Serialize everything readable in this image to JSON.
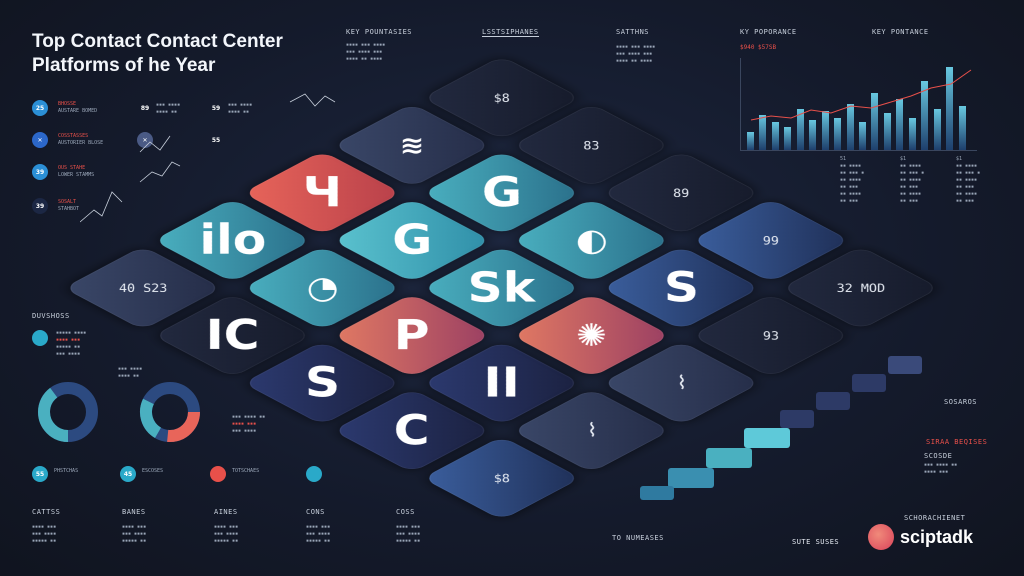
{
  "title_line1": "Top Contact Contact Center",
  "title_line2": "Platforms of he Year",
  "top_headers": {
    "h1": "KEY POUNTASIES",
    "h2": "LSSTSIPHANES",
    "h3": "SATTHNS",
    "h4": "KY POPORANCE",
    "h5": "KEY PONTANCE"
  },
  "left_rows": [
    {
      "icon": "25",
      "color": "#2b8fd6",
      "title": "BHOSSE",
      "sub": "AUSTARE BOMED"
    },
    {
      "icon": "✕",
      "color": "#2c67c9",
      "title": "COSSTASSES",
      "sub": "AUSTORIER BLOSE"
    },
    {
      "icon": "39",
      "color": "#2b8fd6",
      "title": "OUS STAHE",
      "sub": "LOWER STAMMS"
    },
    {
      "icon": "39",
      "color": "#1c2744",
      "title": "SOSALT",
      "sub": "STAHBOT"
    }
  ],
  "mid_icons": [
    {
      "icon": "89",
      "color": "#e8504a"
    },
    {
      "icon": "✕",
      "color": "#4a5a85"
    }
  ],
  "right_icons": [
    {
      "icon": "59",
      "color": "#2aa9c9"
    },
    {
      "icon": "55",
      "color": "#2b6ec9"
    }
  ],
  "tile_values": {
    "v1": "40 S23",
    "v2": "$8",
    "v3": "$8",
    "v4": "83",
    "v5": "89",
    "v6": "99",
    "v7": "93",
    "v8": "32 MOD"
  },
  "section_left": "DUVSHOSS",
  "bottom_icons": [
    {
      "icon": "55",
      "color": "#2aa9c9",
      "text": "PHSTCHAS"
    },
    {
      "icon": "45",
      "color": "#2aa9c9",
      "text": "ESCOSES"
    },
    {
      "icon": "",
      "color": "#e8504a",
      "text": "TOTSCHAES"
    },
    {
      "icon": "",
      "color": "#2aa9c9",
      "text": ""
    }
  ],
  "bottom_headers": {
    "b1": "CATTSS",
    "b2": "BANES",
    "b3": "AINES",
    "b4": "CONS",
    "b5": "COSS",
    "b6": "TO NUMEASES"
  },
  "right_bottom": {
    "label1": "SOSAROS",
    "label2": "SIRAA BEQISES",
    "label3": "SCOSDE",
    "label4": "SCHORACHIENET",
    "label5": "SUTE SUSES"
  },
  "bar_heights": [
    0.2,
    0.38,
    0.3,
    0.25,
    0.45,
    0.33,
    0.42,
    0.35,
    0.5,
    0.3,
    0.62,
    0.4,
    0.55,
    0.35,
    0.75,
    0.45,
    0.9,
    0.48
  ],
  "chart_head_left": "$940 $57SB",
  "brand_name": "sciptadk",
  "colors": {
    "accent": "#e8504a",
    "teal": "#4ab0c0",
    "bg": "#141a2b"
  },
  "glyphs": {
    "g1": "IC",
    "g2": "ilo",
    "g3": "S",
    "g4": "Ч",
    "g5": "C",
    "g6": "P",
    "g7": "G",
    "g8": "II",
    "g9": "Sk",
    "g10": "G",
    "g11": "S"
  }
}
